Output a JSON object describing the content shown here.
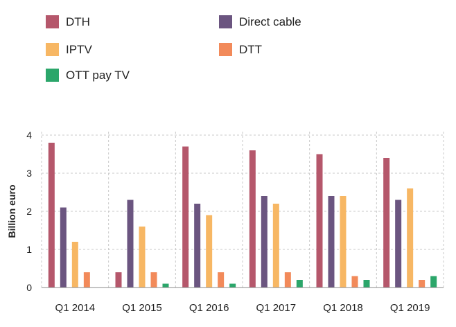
{
  "chart_data": {
    "type": "bar",
    "title": "",
    "xlabel": "",
    "ylabel": "Billion euro",
    "ylim": [
      0,
      4
    ],
    "yticks": [
      "0",
      "1",
      "2",
      "3",
      "4"
    ],
    "grid": true,
    "legend_position": "top-left",
    "categories": [
      "Q1 2014",
      "Q1 2015",
      "Q1 2016",
      "Q1 2017",
      "Q1 2018",
      "Q1 2019"
    ],
    "series": [
      {
        "name": "DTH",
        "color": "#b5576b",
        "values": [
          3.8,
          0.4,
          3.7,
          3.6,
          3.5,
          3.4
        ]
      },
      {
        "name": "Direct cable",
        "color": "#6b5580",
        "values": [
          2.1,
          2.3,
          2.2,
          2.4,
          2.4,
          2.3
        ]
      },
      {
        "name": "IPTV",
        "color": "#f7b764",
        "values": [
          1.2,
          1.6,
          1.9,
          2.2,
          2.4,
          2.6
        ]
      },
      {
        "name": "DTT",
        "color": "#f28a5a",
        "values": [
          0.4,
          0.4,
          0.4,
          0.4,
          0.3,
          0.2
        ]
      },
      {
        "name": "OTT pay TV",
        "color": "#2ba66a",
        "values": [
          0.0,
          0.1,
          0.1,
          0.2,
          0.2,
          0.3
        ]
      }
    ]
  }
}
